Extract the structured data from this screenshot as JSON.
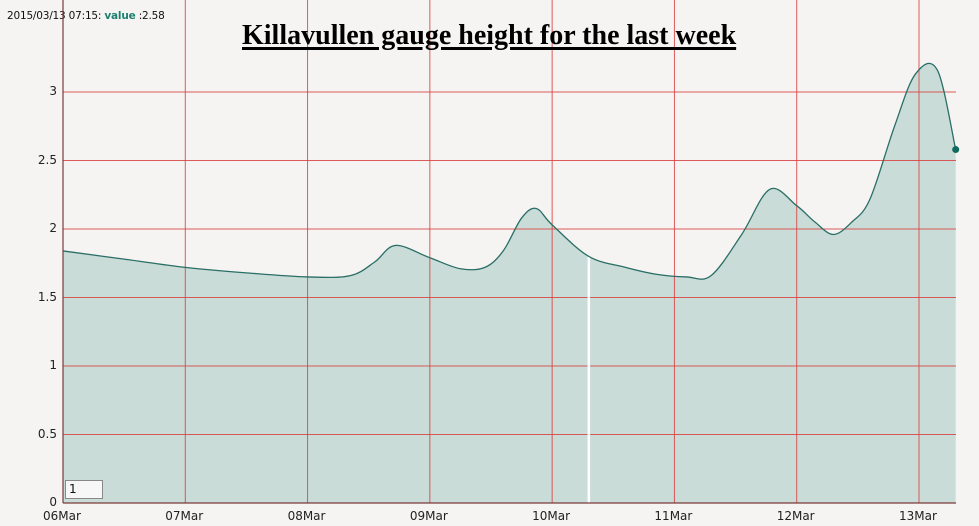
{
  "readout": {
    "timestamp": "2015/03/13 07:15:",
    "value_label": "value",
    "value_text": ":2.58"
  },
  "zoom_input": {
    "value": "1"
  },
  "colors": {
    "grid": "#d94040",
    "fill": "#c9dcd8",
    "line": "#2a6e66",
    "marker": "#0e6b5e",
    "background": "#f5f4f2",
    "cursor_line": "#ffffff"
  },
  "chart_data": {
    "type": "area",
    "title": "Killavullen gauge height for the last week",
    "xlabel": "",
    "ylabel": "",
    "ylim": [
      0,
      3.4
    ],
    "grid": true,
    "legend": "none",
    "x_ticks": [
      "06Mar",
      "07Mar",
      "08Mar",
      "09Mar",
      "10Mar",
      "11Mar",
      "12Mar",
      "13Mar"
    ],
    "y_ticks": [
      "0",
      "0.5",
      "1",
      "1.5",
      "2",
      "2.5",
      "3"
    ],
    "series": [
      {
        "name": "value",
        "x": [
          0.0,
          0.5,
          1.0,
          1.5,
          2.0,
          2.35,
          2.55,
          2.72,
          3.0,
          3.25,
          3.45,
          3.6,
          3.75,
          3.87,
          4.0,
          4.3,
          4.6,
          4.85,
          5.1,
          5.3,
          5.55,
          5.78,
          6.0,
          6.15,
          6.3,
          6.45,
          6.6,
          6.8,
          6.97,
          7.15,
          7.3
        ],
        "values": [
          1.84,
          1.78,
          1.72,
          1.68,
          1.65,
          1.66,
          1.76,
          1.88,
          1.79,
          1.71,
          1.72,
          1.84,
          2.08,
          2.15,
          2.03,
          1.8,
          1.72,
          1.67,
          1.65,
          1.66,
          1.96,
          2.29,
          2.17,
          2.05,
          1.96,
          2.05,
          2.22,
          2.75,
          3.13,
          3.16,
          2.58
        ]
      }
    ],
    "annotations": [
      {
        "type": "cursor",
        "x_label": "2015/03/13 07:15",
        "value": 2.58
      },
      {
        "type": "vertical-marker",
        "x": 4.3
      }
    ]
  }
}
